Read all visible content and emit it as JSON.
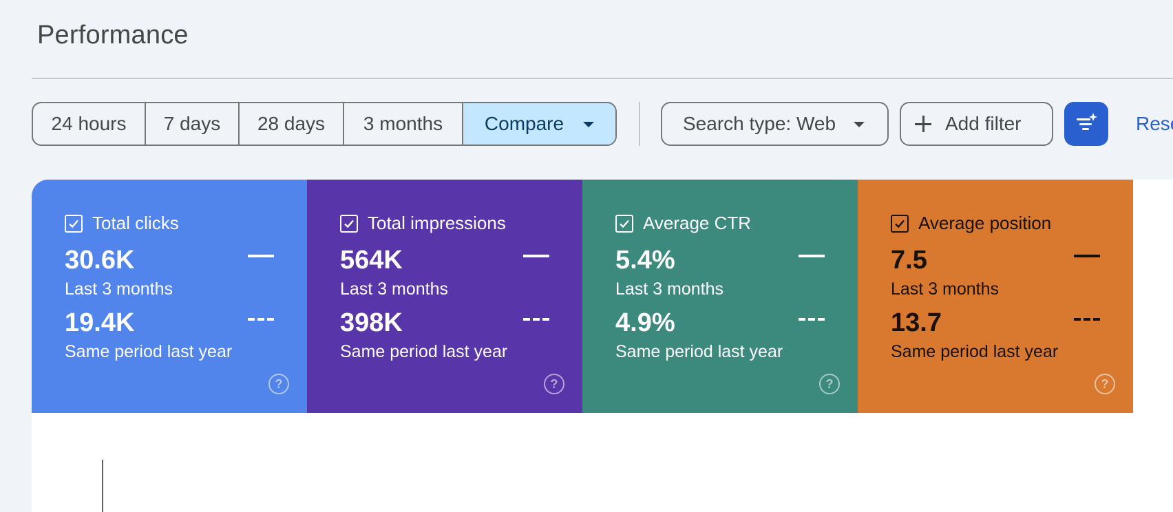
{
  "header": {
    "title": "Performance"
  },
  "toolbar": {
    "ranges": [
      "24 hours",
      "7 days",
      "28 days",
      "3 months"
    ],
    "compare_label": "Compare",
    "search_type_label": "Search type: Web",
    "add_filter_label": "Add filter",
    "reset_label": "Rese"
  },
  "colors": {
    "clicks": "#5285ec",
    "impressions": "#5935aa",
    "ctr": "#3c8a7d",
    "position": "#d97930",
    "accent": "#2a5fcf",
    "compare_bg": "#c2e7ff"
  },
  "metrics": [
    {
      "label": "Total clicks",
      "current": "30.6K",
      "current_period": "Last 3 months",
      "previous": "19.4K",
      "previous_period": "Same period last year",
      "checked": true
    },
    {
      "label": "Total impressions",
      "current": "564K",
      "current_period": "Last 3 months",
      "previous": "398K",
      "previous_period": "Same period last year",
      "checked": true
    },
    {
      "label": "Average CTR",
      "current": "5.4%",
      "current_period": "Last 3 months",
      "previous": "4.9%",
      "previous_period": "Same period last year",
      "checked": true
    },
    {
      "label": "Average position",
      "current": "7.5",
      "current_period": "Last 3 months",
      "previous": "13.7",
      "previous_period": "Same period last year",
      "checked": true
    }
  ],
  "icons": {
    "checkbox": "check-icon",
    "help": "help-icon",
    "ai_filter": "sparkle-filter-icon",
    "add": "plus-icon",
    "dropdown": "chevron-down-icon"
  }
}
